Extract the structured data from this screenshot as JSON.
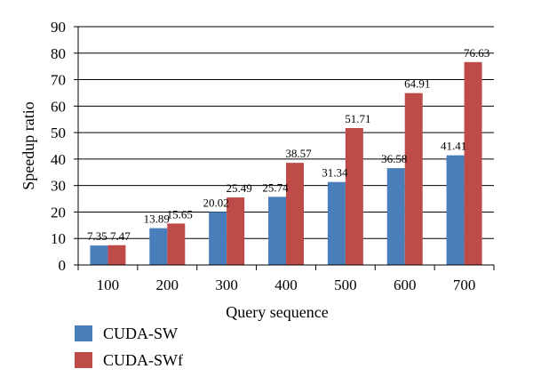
{
  "chart_data": {
    "type": "bar",
    "categories": [
      "100",
      "200",
      "300",
      "400",
      "500",
      "600",
      "700"
    ],
    "series": [
      {
        "name": "CUDA-SW",
        "values": [
          7.35,
          13.89,
          20.02,
          25.74,
          31.34,
          36.58,
          41.41
        ],
        "color": "#4a7ebb"
      },
      {
        "name": "CUDA-SWf",
        "values": [
          7.47,
          15.65,
          25.49,
          38.57,
          51.71,
          64.91,
          76.63
        ],
        "color": "#be4b48"
      }
    ],
    "data_labels": [
      [
        "7.35",
        "13.89",
        "20.02",
        "25.74",
        "31.34",
        "36.58",
        "41.41"
      ],
      [
        "7.47",
        "15.65",
        "25.49",
        "38.57",
        "51.71",
        "64.91",
        "76.63"
      ]
    ],
    "y_ticks": [
      "0",
      "10",
      "20",
      "30",
      "40",
      "50",
      "60",
      "70",
      "80",
      "90"
    ],
    "xlabel": "Query sequence",
    "ylabel": "Speedup ratio",
    "ylim": [
      0,
      90
    ],
    "grid": true,
    "legend_position": "bottom-left"
  }
}
